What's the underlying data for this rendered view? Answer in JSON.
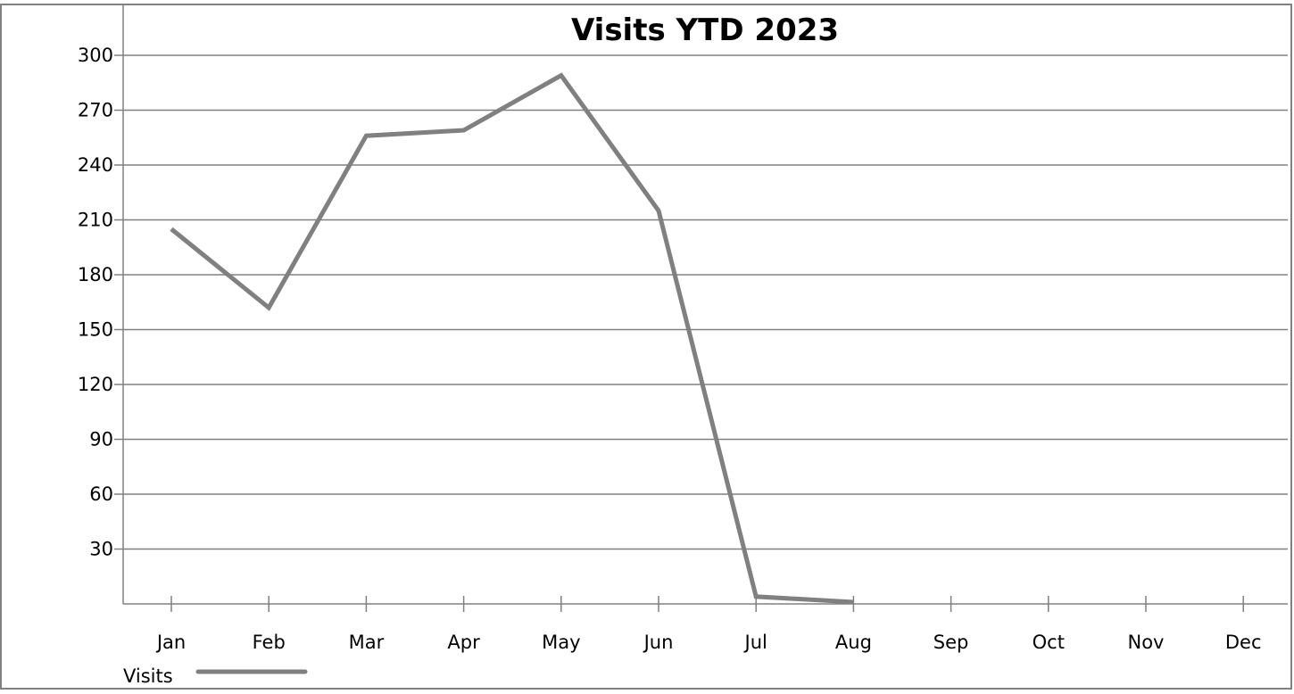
{
  "chart_data": {
    "type": "line",
    "title": "Visits YTD 2023",
    "xlabel": "",
    "ylabel": "",
    "categories": [
      "Jan",
      "Feb",
      "Mar",
      "Apr",
      "May",
      "Jun",
      "Jul",
      "Aug",
      "Sep",
      "Oct",
      "Nov",
      "Dec"
    ],
    "series": [
      {
        "name": "Visits",
        "color": "#808080",
        "values": [
          205,
          162,
          256,
          259,
          289,
          215,
          4,
          1,
          null,
          null,
          null,
          null
        ]
      }
    ],
    "ylim": [
      0,
      300
    ],
    "yticks": [
      30,
      60,
      90,
      120,
      150,
      180,
      210,
      240,
      270,
      300
    ],
    "grid": true,
    "legend_position": "bottom-left"
  }
}
